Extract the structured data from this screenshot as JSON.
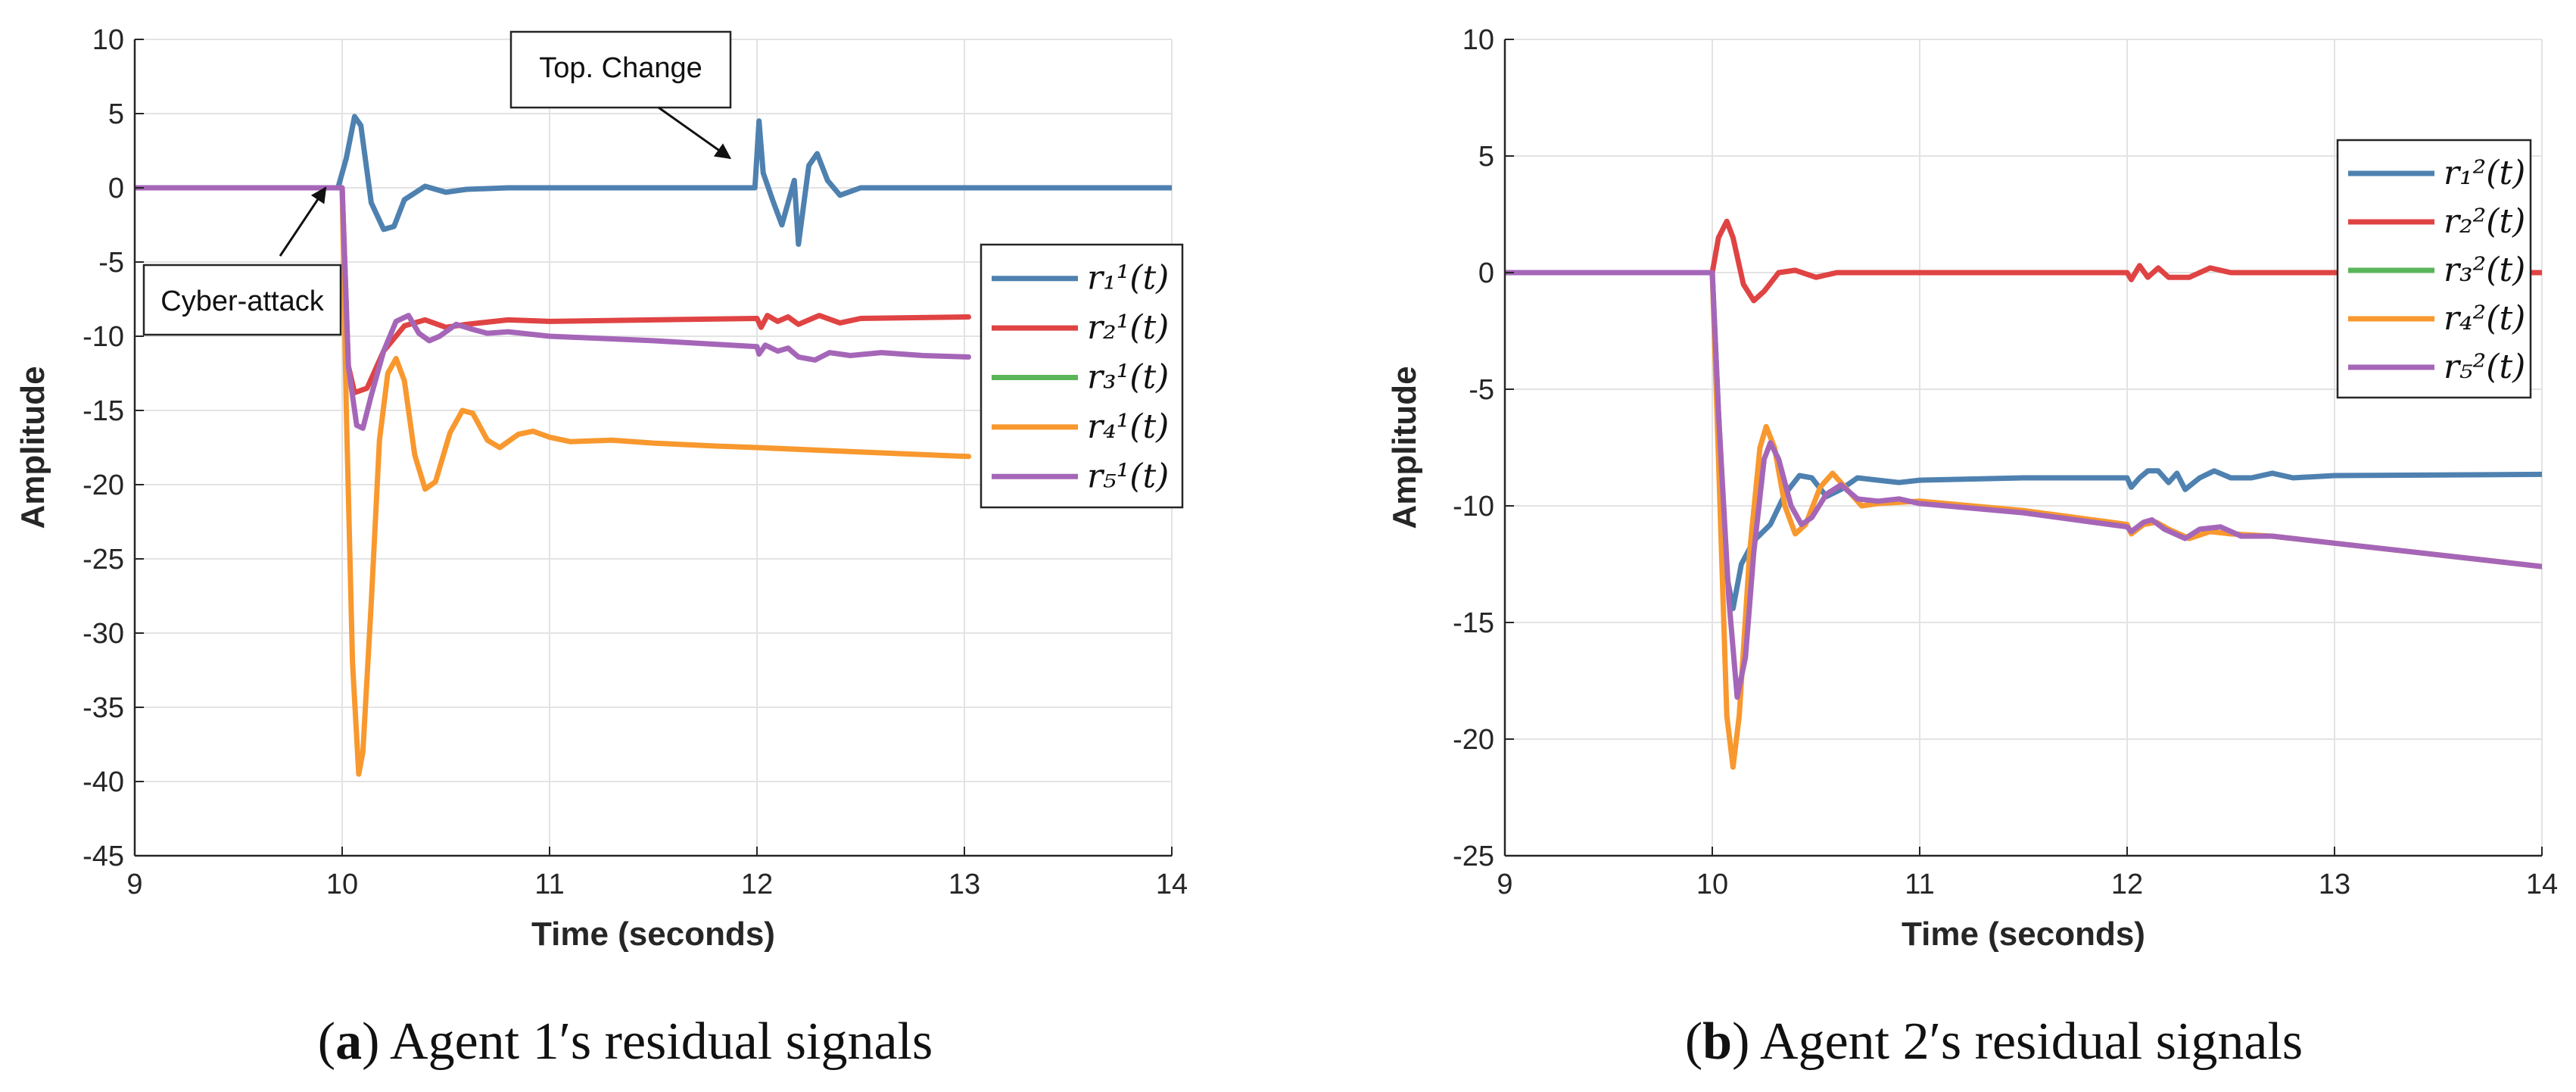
{
  "chart_data": [
    {
      "type": "line",
      "panel": "a",
      "caption_letter": "a",
      "caption_text": "Agent 1′s residual signals",
      "xlabel": "Time (seconds)",
      "ylabel": "Amplitude",
      "xlim": [
        9,
        14
      ],
      "ylim": [
        -45,
        10
      ],
      "xticks": [
        "9",
        "10",
        "11",
        "12",
        "13",
        "14"
      ],
      "yticks": [
        "10",
        "5",
        "0",
        "-5",
        "-10",
        "-15",
        "-20",
        "-25",
        "-30",
        "-35",
        "-40",
        "-45"
      ],
      "grid": true,
      "legend_position": "right",
      "annotations": [
        {
          "text": "Cyber-attack",
          "target": [
            9.92,
            0
          ]
        },
        {
          "text": "Top. Change",
          "target": [
            11.87,
            2
          ]
        }
      ],
      "series": [
        {
          "name": "r₁¹(t)",
          "sub": "1",
          "sup": "1",
          "color": "#4e81b0",
          "points": [
            [
              9,
              0
            ],
            [
              9.98,
              0
            ],
            [
              10.02,
              2
            ],
            [
              10.06,
              4.8
            ],
            [
              10.09,
              4.2
            ],
            [
              10.14,
              -1
            ],
            [
              10.2,
              -2.8
            ],
            [
              10.25,
              -2.6
            ],
            [
              10.3,
              -0.8
            ],
            [
              10.4,
              0.1
            ],
            [
              10.5,
              -0.3
            ],
            [
              10.6,
              -0.1
            ],
            [
              10.8,
              0
            ],
            [
              11.99,
              0
            ],
            [
              12.01,
              4.5
            ],
            [
              12.03,
              1
            ],
            [
              12.08,
              -1
            ],
            [
              12.12,
              -2.5
            ],
            [
              12.18,
              0.5
            ],
            [
              12.2,
              -3.8
            ],
            [
              12.25,
              1.5
            ],
            [
              12.29,
              2.3
            ],
            [
              12.34,
              0.5
            ],
            [
              12.4,
              -0.5
            ],
            [
              12.5,
              0
            ],
            [
              14,
              0
            ]
          ]
        },
        {
          "name": "r₂¹(t)",
          "sub": "2",
          "sup": "1",
          "color": "#e04343",
          "points": [
            [
              9,
              0
            ],
            [
              10,
              0
            ],
            [
              10.03,
              -12
            ],
            [
              10.06,
              -13.8
            ],
            [
              10.12,
              -13.5
            ],
            [
              10.2,
              -11
            ],
            [
              10.3,
              -9.3
            ],
            [
              10.4,
              -8.9
            ],
            [
              10.5,
              -9.4
            ],
            [
              10.6,
              -9.2
            ],
            [
              10.8,
              -8.9
            ],
            [
              11,
              -9
            ],
            [
              11.5,
              -8.9
            ],
            [
              12,
              -8.8
            ],
            [
              12.02,
              -9.4
            ],
            [
              12.05,
              -8.6
            ],
            [
              12.1,
              -9
            ],
            [
              12.15,
              -8.7
            ],
            [
              12.2,
              -9.2
            ],
            [
              12.3,
              -8.6
            ],
            [
              12.4,
              -9.1
            ],
            [
              12.5,
              -8.8
            ],
            [
              13.02,
              -8.7
            ]
          ]
        },
        {
          "name": "r₃¹(t)",
          "sub": "3",
          "sup": "1",
          "color": "#5ab55a",
          "points": []
        },
        {
          "name": "r₄¹(t)",
          "sub": "4",
          "sup": "1",
          "color": "#f8982e",
          "points": [
            [
              9,
              0
            ],
            [
              10,
              0
            ],
            [
              10.02,
              -15
            ],
            [
              10.05,
              -32
            ],
            [
              10.08,
              -39.5
            ],
            [
              10.1,
              -38
            ],
            [
              10.14,
              -28
            ],
            [
              10.18,
              -17
            ],
            [
              10.22,
              -12.5
            ],
            [
              10.26,
              -11.5
            ],
            [
              10.3,
              -13
            ],
            [
              10.35,
              -18
            ],
            [
              10.4,
              -20.3
            ],
            [
              10.45,
              -19.8
            ],
            [
              10.52,
              -16.5
            ],
            [
              10.58,
              -15
            ],
            [
              10.63,
              -15.2
            ],
            [
              10.7,
              -17
            ],
            [
              10.76,
              -17.5
            ],
            [
              10.85,
              -16.6
            ],
            [
              10.92,
              -16.4
            ],
            [
              11,
              -16.8
            ],
            [
              11.1,
              -17.1
            ],
            [
              11.3,
              -17
            ],
            [
              11.5,
              -17.2
            ],
            [
              11.8,
              -17.4
            ],
            [
              12,
              -17.5
            ],
            [
              12.5,
              -17.8
            ],
            [
              13.02,
              -18.1
            ]
          ]
        },
        {
          "name": "r₅¹(t)",
          "sub": "5",
          "sup": "1",
          "color": "#a566b8",
          "points": [
            [
              9,
              0
            ],
            [
              10,
              0
            ],
            [
              10.03,
              -12
            ],
            [
              10.07,
              -16
            ],
            [
              10.1,
              -16.2
            ],
            [
              10.14,
              -14
            ],
            [
              10.2,
              -11
            ],
            [
              10.26,
              -9
            ],
            [
              10.32,
              -8.6
            ],
            [
              10.37,
              -9.8
            ],
            [
              10.42,
              -10.3
            ],
            [
              10.47,
              -10
            ],
            [
              10.55,
              -9.2
            ],
            [
              10.62,
              -9.5
            ],
            [
              10.7,
              -9.8
            ],
            [
              10.8,
              -9.7
            ],
            [
              11,
              -10
            ],
            [
              11.5,
              -10.3
            ],
            [
              12,
              -10.7
            ],
            [
              12.01,
              -11.2
            ],
            [
              12.04,
              -10.6
            ],
            [
              12.1,
              -11
            ],
            [
              12.15,
              -10.8
            ],
            [
              12.2,
              -11.4
            ],
            [
              12.28,
              -11.6
            ],
            [
              12.35,
              -11.1
            ],
            [
              12.45,
              -11.3
            ],
            [
              12.6,
              -11.1
            ],
            [
              12.8,
              -11.3
            ],
            [
              13.02,
              -11.4
            ]
          ]
        }
      ]
    },
    {
      "type": "line",
      "panel": "b",
      "caption_letter": "b",
      "caption_text": "Agent 2′s residual signals",
      "xlabel": "Time (seconds)",
      "ylabel": "Amplitude",
      "xlim": [
        9,
        14
      ],
      "ylim": [
        -25,
        10
      ],
      "xticks": [
        "9",
        "10",
        "11",
        "12",
        "13",
        "14"
      ],
      "yticks": [
        "10",
        "5",
        "0",
        "-5",
        "-10",
        "-15",
        "-20",
        "-25"
      ],
      "grid": true,
      "legend_position": "top-right",
      "series": [
        {
          "name": "r₁²(t)",
          "sub": "1",
          "sup": "2",
          "color": "#4e81b0",
          "points": [
            [
              9,
              0
            ],
            [
              10,
              0
            ],
            [
              10.03,
              -6
            ],
            [
              10.07,
              -13
            ],
            [
              10.1,
              -14.4
            ],
            [
              10.14,
              -12.5
            ],
            [
              10.2,
              -11.5
            ],
            [
              10.28,
              -10.8
            ],
            [
              10.35,
              -9.5
            ],
            [
              10.42,
              -8.7
            ],
            [
              10.48,
              -8.8
            ],
            [
              10.55,
              -9.6
            ],
            [
              10.62,
              -9.3
            ],
            [
              10.7,
              -8.8
            ],
            [
              10.8,
              -8.9
            ],
            [
              10.9,
              -9
            ],
            [
              11,
              -8.9
            ],
            [
              11.5,
              -8.8
            ],
            [
              12,
              -8.8
            ],
            [
              12.02,
              -9.2
            ],
            [
              12.06,
              -8.8
            ],
            [
              12.1,
              -8.5
            ],
            [
              12.15,
              -8.5
            ],
            [
              12.2,
              -9
            ],
            [
              12.24,
              -8.6
            ],
            [
              12.28,
              -9.3
            ],
            [
              12.35,
              -8.8
            ],
            [
              12.42,
              -8.5
            ],
            [
              12.5,
              -8.8
            ],
            [
              12.6,
              -8.8
            ],
            [
              12.7,
              -8.6
            ],
            [
              12.8,
              -8.8
            ],
            [
              13,
              -8.7
            ],
            [
              14,
              -8.65
            ]
          ]
        },
        {
          "name": "r₂²(t)",
          "sub": "2",
          "sup": "2",
          "color": "#e04343",
          "points": [
            [
              9,
              0
            ],
            [
              10,
              0
            ],
            [
              10.03,
              1.5
            ],
            [
              10.07,
              2.2
            ],
            [
              10.1,
              1.5
            ],
            [
              10.15,
              -0.5
            ],
            [
              10.2,
              -1.2
            ],
            [
              10.25,
              -0.8
            ],
            [
              10.32,
              0
            ],
            [
              10.4,
              0.1
            ],
            [
              10.5,
              -0.2
            ],
            [
              10.6,
              0
            ],
            [
              12,
              0
            ],
            [
              12.02,
              -0.3
            ],
            [
              12.06,
              0.3
            ],
            [
              12.1,
              -0.2
            ],
            [
              12.15,
              0.2
            ],
            [
              12.2,
              -0.2
            ],
            [
              12.3,
              -0.2
            ],
            [
              12.4,
              0.2
            ],
            [
              12.5,
              0
            ],
            [
              14,
              0
            ]
          ]
        },
        {
          "name": "r₃²(t)",
          "sub": "3",
          "sup": "2",
          "color": "#5ab55a",
          "points": []
        },
        {
          "name": "r₄²(t)",
          "sub": "4",
          "sup": "2",
          "color": "#f8982e",
          "points": [
            [
              9,
              0
            ],
            [
              10,
              0
            ],
            [
              10.03,
              -8
            ],
            [
              10.07,
              -19
            ],
            [
              10.1,
              -21.2
            ],
            [
              10.13,
              -19
            ],
            [
              10.18,
              -12
            ],
            [
              10.23,
              -7.5
            ],
            [
              10.26,
              -6.6
            ],
            [
              10.3,
              -7.5
            ],
            [
              10.35,
              -10
            ],
            [
              10.4,
              -11.2
            ],
            [
              10.45,
              -10.8
            ],
            [
              10.52,
              -9.2
            ],
            [
              10.58,
              -8.6
            ],
            [
              10.64,
              -9.2
            ],
            [
              10.72,
              -10
            ],
            [
              10.8,
              -9.9
            ],
            [
              11,
              -9.8
            ],
            [
              11.5,
              -10.2
            ],
            [
              12,
              -10.8
            ],
            [
              12.02,
              -11.2
            ],
            [
              12.08,
              -10.8
            ],
            [
              12.14,
              -10.7
            ],
            [
              12.2,
              -11
            ],
            [
              12.3,
              -11.4
            ],
            [
              12.4,
              -11.1
            ],
            [
              12.5,
              -11.2
            ],
            [
              12.7,
              -11.3
            ],
            [
              13,
              -11.6
            ],
            [
              14,
              -12.6
            ]
          ]
        },
        {
          "name": "r₅²(t)",
          "sub": "5",
          "sup": "2",
          "color": "#a566b8",
          "points": [
            [
              9,
              0
            ],
            [
              10,
              0
            ],
            [
              10.03,
              -6
            ],
            [
              10.08,
              -14
            ],
            [
              10.12,
              -18.2
            ],
            [
              10.16,
              -16.5
            ],
            [
              10.2,
              -12
            ],
            [
              10.25,
              -8
            ],
            [
              10.28,
              -7.3
            ],
            [
              10.32,
              -8
            ],
            [
              10.38,
              -10
            ],
            [
              10.43,
              -10.8
            ],
            [
              10.48,
              -10.5
            ],
            [
              10.55,
              -9.5
            ],
            [
              10.62,
              -9.1
            ],
            [
              10.7,
              -9.7
            ],
            [
              10.8,
              -9.8
            ],
            [
              10.9,
              -9.7
            ],
            [
              11,
              -9.9
            ],
            [
              11.5,
              -10.3
            ],
            [
              12,
              -10.9
            ],
            [
              12.02,
              -11.1
            ],
            [
              12.08,
              -10.7
            ],
            [
              12.12,
              -10.6
            ],
            [
              12.18,
              -11
            ],
            [
              12.28,
              -11.4
            ],
            [
              12.35,
              -11
            ],
            [
              12.45,
              -10.9
            ],
            [
              12.55,
              -11.3
            ],
            [
              12.7,
              -11.3
            ],
            [
              13,
              -11.6
            ],
            [
              14,
              -12.6
            ]
          ]
        }
      ]
    }
  ]
}
